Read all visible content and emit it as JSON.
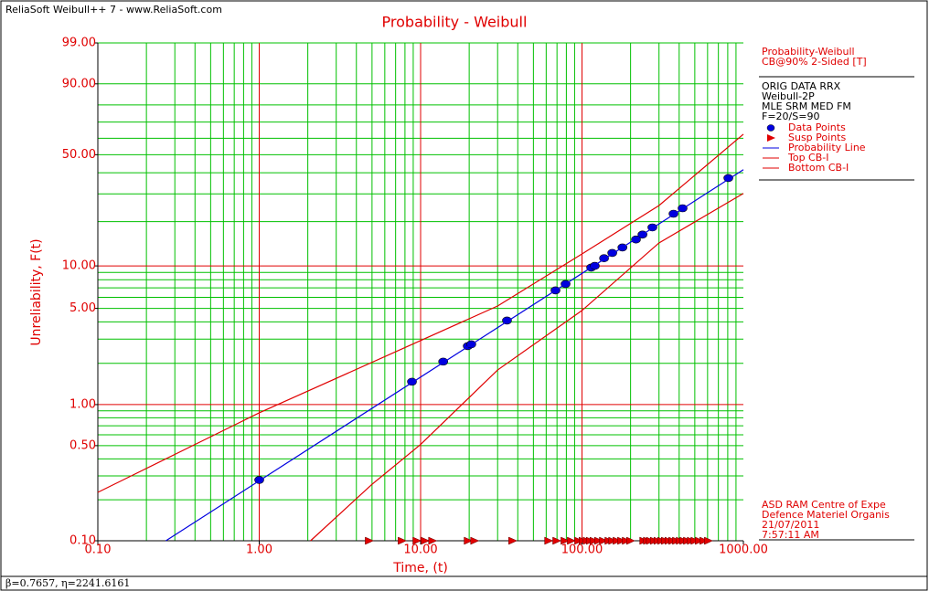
{
  "app_title": "ReliaSoft Weibull++ 7 - www.ReliaSoft.com",
  "status": "β=0.7657, η=2241.6161",
  "chart_data": {
    "type": "scatter",
    "title": "Probability - Weibull",
    "xlabel": "Time, (t)",
    "ylabel": "Unreliability, F(t)",
    "xscale": "log",
    "yscale": "weibull",
    "xlim": [
      0.1,
      1000
    ],
    "ylim": [
      0.1,
      99
    ],
    "xticks": [
      {
        "value": 0.1,
        "label": "0.10"
      },
      {
        "value": 1,
        "label": "1.00"
      },
      {
        "value": 10,
        "label": "10.00"
      },
      {
        "value": 100,
        "label": "100.00"
      },
      {
        "value": 1000,
        "label": "1000.00"
      }
    ],
    "yticks": [
      {
        "value": 0.1,
        "label": "0.10"
      },
      {
        "value": 0.5,
        "label": "0.50"
      },
      {
        "value": 1,
        "label": "1.00"
      },
      {
        "value": 5,
        "label": "5.00"
      },
      {
        "value": 10,
        "label": "10.00"
      },
      {
        "value": 50,
        "label": "50.00"
      },
      {
        "value": 90,
        "label": "90.00"
      },
      {
        "value": 99,
        "label": "99.00"
      }
    ],
    "grid_color": "#00c000",
    "major_grid_color": "#e00000",
    "xgrid": [
      0.2,
      0.3,
      0.4,
      0.5,
      0.6,
      0.7,
      0.8,
      0.9,
      2,
      3,
      4,
      5,
      6,
      7,
      8,
      9,
      20,
      30,
      40,
      50,
      60,
      70,
      80,
      90,
      200,
      300,
      400,
      500,
      600,
      700,
      800,
      900
    ],
    "xgrid_major": [
      1,
      10,
      100
    ],
    "ygrid": [
      0.2,
      0.3,
      0.4,
      0.5,
      0.6,
      0.7,
      0.8,
      0.9,
      2,
      3,
      4,
      5,
      6,
      7,
      8,
      9,
      20,
      30,
      40,
      50,
      60,
      70,
      80,
      90,
      99
    ],
    "ygrid_major": [
      1,
      10
    ],
    "legend_header": [
      "Probability-Weibull",
      "CB@90% 2-Sided [T]"
    ],
    "legend_info": [
      "ORIG DATA RRX",
      "Weibull-2P",
      "MLE SRM MED FM",
      "F=20/S=90"
    ],
    "footer": [
      "ASD RAM Centre of Expe",
      "Defence Materiel Organis",
      "21/07/2011",
      "7:57:11 AM"
    ],
    "series": [
      {
        "name": "Data Points",
        "marker": "circle",
        "color": "#0000e0",
        "x": [
          1.0,
          8.84,
          13.8,
          19.6,
          20.6,
          34.3,
          68.5,
          79.1,
          114,
          120,
          137,
          154,
          178,
          216,
          237,
          273,
          369,
          420,
          807
        ],
        "values": [
          0.28,
          1.47,
          2.06,
          2.67,
          2.75,
          4.09,
          6.72,
          7.46,
          9.73,
          10.0,
          11.3,
          12.3,
          13.4,
          15.2,
          16.4,
          18.3,
          22.5,
          24.4,
          37.3
        ]
      },
      {
        "name": "Susp Points",
        "marker": "triangle",
        "color": "#e00000",
        "x": [
          4.78,
          7.64,
          9.43,
          10.6,
          11.8,
          19.6,
          21.5,
          37.0,
          61.8,
          69.4,
          78.0,
          85.4,
          94.8,
          101,
          107,
          112,
          118,
          126,
          135,
          146,
          154,
          164,
          175,
          187,
          199,
          240,
          253,
          264,
          279,
          294,
          310,
          327,
          344,
          363,
          383,
          404,
          425,
          448,
          473,
          498,
          530,
          566,
          604
        ]
      },
      {
        "name": "Probability Line",
        "marker": "line",
        "color": "#0000e0",
        "x": [
          0.264,
          1000
        ],
        "values": [
          0.1,
          41.6
        ]
      },
      {
        "name": "Top CB-I",
        "marker": "line",
        "color": "#e00000",
        "x": [
          0.1,
          1,
          10,
          30,
          100,
          300,
          1000
        ],
        "values": [
          0.227,
          0.87,
          2.93,
          5.2,
          12.1,
          25.4,
          62.5
        ]
      },
      {
        "name": "Bottom CB-I",
        "marker": "line",
        "color": "#e00000",
        "x": [
          2.08,
          5,
          10,
          30,
          100,
          300,
          1000
        ],
        "values": [
          0.1,
          0.26,
          0.51,
          1.79,
          4.83,
          14.4,
          30.2
        ]
      }
    ]
  }
}
